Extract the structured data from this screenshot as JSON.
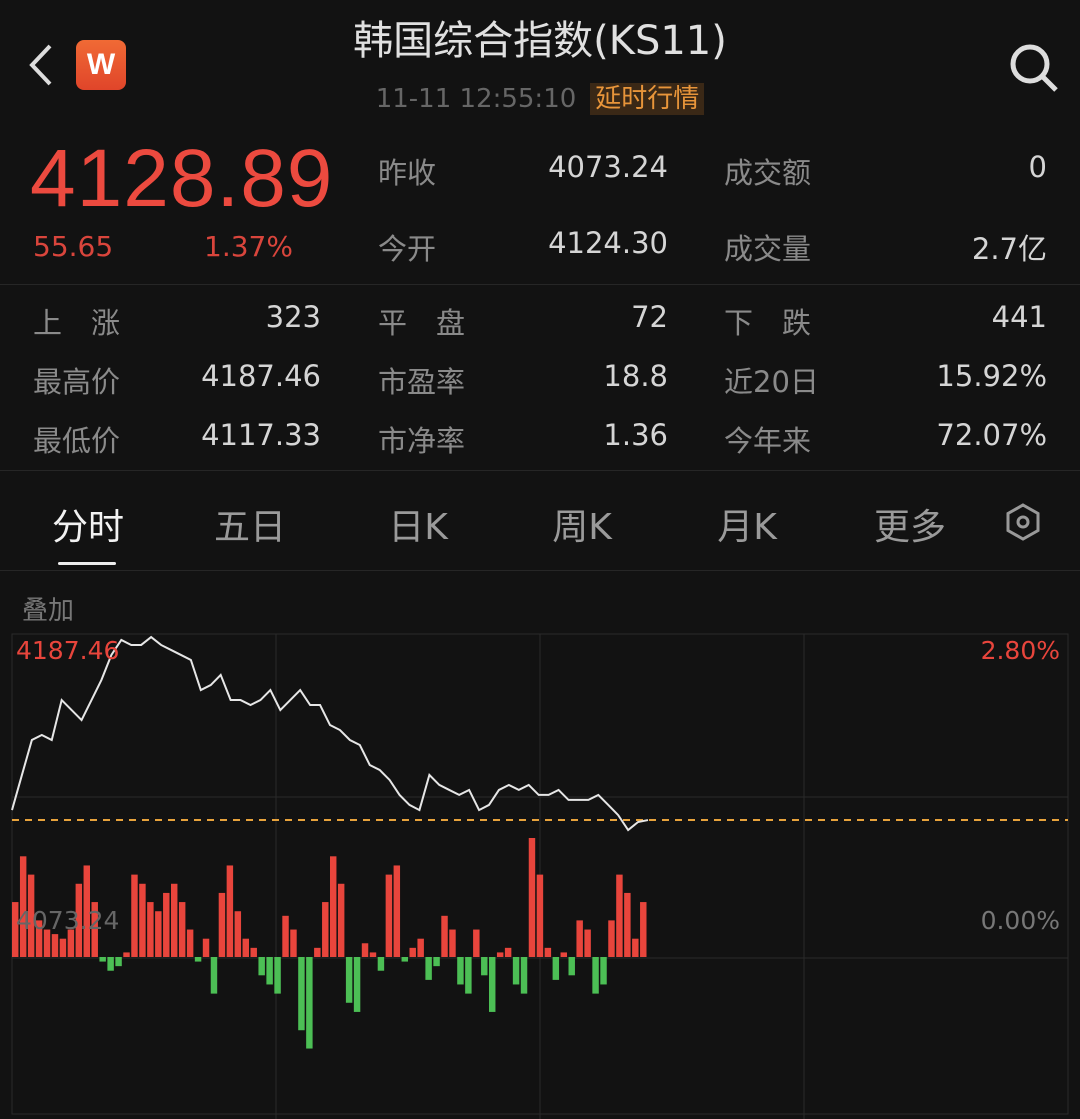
{
  "header": {
    "title": "韩国综合指数(KS11)",
    "datetime": "11-11 12:55:10",
    "tag": "延时行情",
    "logo": "W",
    "icons": [
      "chevron-left-icon",
      "search-icon"
    ]
  },
  "quote": {
    "price": "4128.89",
    "change": "55.65",
    "change_pct": "1.37%",
    "color": "#ec4a3f"
  },
  "stats_top": [
    {
      "label": "昨收",
      "value": "4073.24"
    },
    {
      "label": "成交额",
      "value": "0"
    },
    {
      "label": "今开",
      "value": "4124.30"
    },
    {
      "label": "成交量",
      "value": "2.7亿"
    }
  ],
  "stats": [
    {
      "label": "上　涨",
      "value": "323"
    },
    {
      "label": "平　盘",
      "value": "72"
    },
    {
      "label": "下　跌",
      "value": "441"
    },
    {
      "label": "最高价",
      "value": "4187.46"
    },
    {
      "label": "市盈率",
      "value": "18.8"
    },
    {
      "label": "近20日",
      "value": "15.92%"
    },
    {
      "label": "最低价",
      "value": "4117.33"
    },
    {
      "label": "市净率",
      "value": "1.36"
    },
    {
      "label": "今年来",
      "value": "72.07%"
    }
  ],
  "tabs": [
    {
      "label": "分时",
      "active": true
    },
    {
      "label": "五日"
    },
    {
      "label": "日K"
    },
    {
      "label": "周K"
    },
    {
      "label": "月K"
    },
    {
      "label": "更多"
    }
  ],
  "overlay_label": "叠加",
  "chart_data": {
    "type": "line",
    "high_label": "4187.46",
    "base_label": "4073.24",
    "high_pct_label": "2.80%",
    "base_pct_label": "0.00%",
    "ylim": [
      4060,
      4190
    ],
    "base": 4073.24,
    "prices": [
      4079.4,
      4101.2,
      4122.9,
      4126.0,
      4122.9,
      4147.7,
      4141.5,
      4135.3,
      4147.7,
      4160.2,
      4175.7,
      4185.0,
      4181.9,
      4181.9,
      4186.8,
      4181.9,
      4178.8,
      4175.7,
      4172.6,
      4153.9,
      4157.0,
      4163.3,
      4147.7,
      4147.7,
      4144.6,
      4147.7,
      4153.9,
      4141.5,
      4147.7,
      4153.9,
      4144.6,
      4144.6,
      4132.2,
      4129.1,
      4122.9,
      4119.8,
      4107.4,
      4104.3,
      4098.1,
      4088.8,
      4082.6,
      4079.4,
      4101.2,
      4095.0,
      4091.9,
      4088.8,
      4091.9,
      4079.4,
      4082.6,
      4091.9,
      4095.0,
      4091.9,
      4095.0,
      4088.8,
      4088.8,
      4091.9,
      4085.7,
      4085.7,
      4085.7,
      4088.8,
      4082.6,
      4076.3,
      4067.0,
      4072.0,
      4073.2
    ],
    "bars": [
      60,
      110,
      90,
      40,
      30,
      25,
      20,
      30,
      80,
      100,
      60,
      -5,
      -15,
      -10,
      5,
      90,
      80,
      60,
      50,
      70,
      80,
      60,
      30,
      -5,
      20,
      -40,
      70,
      100,
      50,
      20,
      10,
      -20,
      -30,
      -40,
      45,
      30,
      -80,
      -100,
      10,
      60,
      110,
      80,
      -50,
      -60,
      15,
      5,
      -15,
      90,
      100,
      -5,
      10,
      20,
      -25,
      -10,
      45,
      30,
      -30,
      -40,
      30,
      -20,
      -60,
      5,
      10,
      -30,
      -40,
      130,
      90,
      10,
      -25,
      5,
      -20,
      40,
      30,
      -40,
      -30,
      40,
      90,
      70,
      20,
      60
    ],
    "up_color": "#e8453c",
    "down_color": "#4cbf55",
    "base_line_color": "#e8a33c"
  }
}
